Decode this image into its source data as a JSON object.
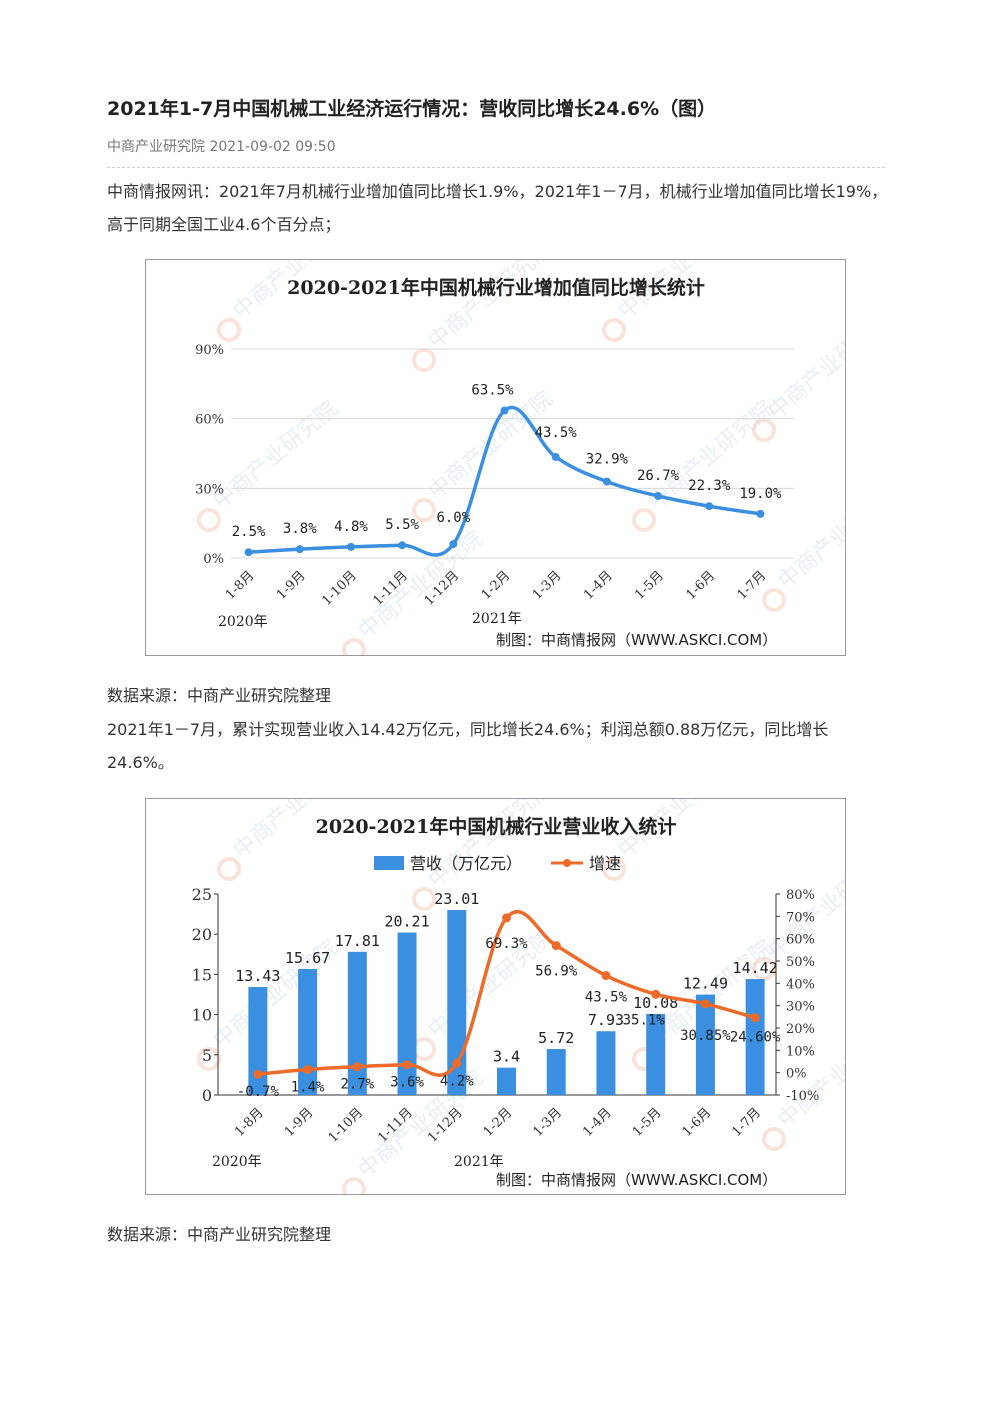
{
  "article": {
    "title": "2021年1-7月中国机械工业经济运行情况：营收同比增长24.6%（图）",
    "meta": "中商产业研究院 2021-09-02 09:50",
    "para1": "中商情报网讯：2021年7月机械行业增加值同比增长1.9%，2021年1－7月，机械行业增加值同比增长19%，高于同期全国工业4.6个百分点；",
    "source1": "数据来源：中商产业研究院整理",
    "para2": "2021年1－7月，累计实现营业收入14.42万亿元，同比增长24.6%；利润总额0.88万亿元，同比增长24.6%。",
    "source2": "数据来源：中商产业研究院整理"
  },
  "chart_data": [
    {
      "type": "line",
      "title": "2020-2021年中国机械行业增加值同比增长统计",
      "credit": "制图：中商情报网（WWW.ASKCI.COM）",
      "watermark": "中商产业研究院",
      "categories": [
        "1-8月",
        "1-9月",
        "1-10月",
        "1-11月",
        "1-12月",
        "1-2月",
        "1-3月",
        "1-4月",
        "1-5月",
        "1-6月",
        "1-7月"
      ],
      "year_labels": [
        "2020年",
        "2021年"
      ],
      "values": [
        2.5,
        3.8,
        4.8,
        5.5,
        6.0,
        63.5,
        43.5,
        32.9,
        26.7,
        22.3,
        19.0
      ],
      "value_labels": [
        "2.5%",
        "3.8%",
        "4.8%",
        "5.5%",
        "6.0%",
        "63.5%",
        "43.5%",
        "32.9%",
        "26.7%",
        "22.3%",
        "19.0%"
      ],
      "ylim": [
        0,
        90
      ],
      "yticks": [
        "0%",
        "30%",
        "60%",
        "90%"
      ],
      "grid": true,
      "color": "#3b8fe0"
    },
    {
      "type": "bar+line",
      "title": "2020-2021年中国机械行业营业收入统计",
      "credit": "制图：中商情报网（WWW.ASKCI.COM）",
      "watermark": "中商产业研究院",
      "categories": [
        "1-8月",
        "1-9月",
        "1-10月",
        "1-11月",
        "1-12月",
        "1-2月",
        "1-3月",
        "1-4月",
        "1-5月",
        "1-6月",
        "1-7月"
      ],
      "year_labels": [
        "2020年",
        "2021年"
      ],
      "legend": [
        "营收（万亿元）",
        "增速"
      ],
      "series": [
        {
          "name": "营收（万亿元）",
          "values": [
            13.43,
            15.67,
            17.81,
            20.21,
            23.01,
            3.4,
            5.72,
            7.93,
            10.08,
            12.49,
            14.42
          ],
          "labels": [
            "13.43",
            "15.67",
            "17.81",
            "20.21",
            "23.01",
            "3.4",
            "5.72",
            "7.93",
            "10.08",
            "12.49",
            "14.42"
          ],
          "color": "#3b8fe0"
        },
        {
          "name": "增速",
          "values": [
            -0.7,
            1.4,
            2.7,
            3.6,
            4.2,
            69.3,
            56.9,
            43.5,
            35.1,
            30.85,
            24.6
          ],
          "labels": [
            "-0.7%",
            "1.4%",
            "2.7%",
            "3.6%",
            "4.2%",
            "69.3%",
            "56.9%",
            "43.5%",
            "35.1%",
            "30.85%",
            "24.60%"
          ],
          "color": "#ed6a28"
        }
      ],
      "ylim_left": [
        0,
        25
      ],
      "yticks_left": [
        "0",
        "5",
        "10",
        "15",
        "20",
        "25"
      ],
      "ylim_right": [
        -10,
        80
      ],
      "yticks_right": [
        "-10%",
        "0%",
        "10%",
        "20%",
        "30%",
        "40%",
        "50%",
        "60%",
        "70%",
        "80%"
      ]
    }
  ]
}
